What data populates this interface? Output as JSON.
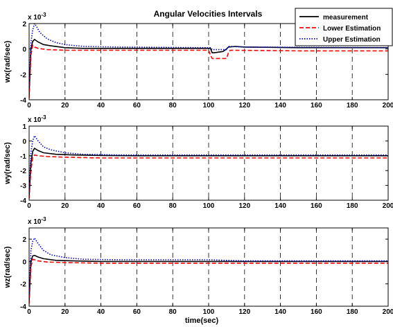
{
  "title": "Angular Velocities Intervals",
  "legend": [
    "measurement",
    "Lower Estimation",
    "Upper Estimation"
  ],
  "chart_data": [
    {
      "type": "line",
      "title": "Angular Velocities Intervals",
      "ylabel": "wx(rad/sec)",
      "xlabel": "",
      "exponent_label": "x 10",
      "exponent_power": "-3",
      "xlim": [
        0,
        200
      ],
      "ylim": [
        -4,
        2
      ],
      "xticks": [
        "0",
        "20",
        "40",
        "60",
        "80",
        "100",
        "120",
        "140",
        "160",
        "180",
        "200"
      ],
      "yticks": [
        "-4",
        "-2",
        "0",
        "2"
      ],
      "grid": "vertical dashed",
      "legend_position": "top-right",
      "series": [
        {
          "name": "measurement",
          "color": "#000000",
          "style": "solid",
          "x": [
            0,
            1,
            2,
            3,
            5,
            8,
            12,
            20,
            30,
            50,
            80,
            101,
            102,
            103,
            108,
            110,
            111,
            115,
            120,
            150,
            200
          ],
          "y": [
            -3.6,
            0.0,
            0.6,
            0.75,
            0.55,
            0.35,
            0.25,
            0.1,
            0.05,
            0.05,
            0.05,
            0.05,
            -0.3,
            -0.3,
            -0.2,
            0.0,
            0.15,
            0.2,
            0.15,
            0.1,
            0.1
          ]
        },
        {
          "name": "Lower Estimation",
          "color": "#ff0000",
          "style": "dashed",
          "x": [
            0,
            1,
            2,
            3,
            5,
            10,
            20,
            50,
            100,
            101,
            102,
            110,
            111,
            112,
            150,
            200
          ],
          "y": [
            -3.9,
            -0.5,
            0.3,
            0.15,
            0.05,
            -0.05,
            -0.1,
            -0.1,
            -0.1,
            -0.5,
            -0.75,
            -0.75,
            -0.3,
            -0.1,
            -0.15,
            -0.15
          ]
        },
        {
          "name": "Upper Estimation",
          "color": "#0000cc",
          "style": "dotted",
          "x": [
            0,
            1,
            2,
            3,
            4,
            6,
            10,
            15,
            20,
            30,
            50,
            101,
            102,
            110,
            111,
            120,
            200
          ],
          "y": [
            -3.0,
            0.5,
            1.5,
            2.0,
            1.8,
            1.3,
            0.8,
            0.5,
            0.35,
            0.2,
            0.15,
            0.1,
            -0.05,
            -0.05,
            0.2,
            0.15,
            0.1
          ]
        }
      ]
    },
    {
      "type": "line",
      "ylabel": "wy(rad/sec)",
      "xlabel": "",
      "exponent_label": "x 10",
      "exponent_power": "-3",
      "xlim": [
        0,
        200
      ],
      "ylim": [
        -4,
        1
      ],
      "xticks": [
        "0",
        "20",
        "40",
        "60",
        "80",
        "100",
        "120",
        "140",
        "160",
        "180",
        "200"
      ],
      "yticks": [
        "-4",
        "-3",
        "-2",
        "-1",
        "0",
        "1"
      ],
      "grid": "vertical dashed",
      "series": [
        {
          "name": "measurement",
          "color": "#000000",
          "style": "solid",
          "x": [
            0,
            1,
            2,
            3,
            5,
            8,
            15,
            25,
            40,
            60,
            200
          ],
          "y": [
            -3.8,
            -1.5,
            -0.7,
            -0.5,
            -0.65,
            -0.8,
            -0.9,
            -0.95,
            -0.98,
            -1.0,
            -1.0
          ]
        },
        {
          "name": "Lower Estimation",
          "color": "#ff0000",
          "style": "dashed",
          "x": [
            0,
            1,
            2,
            3,
            5,
            10,
            20,
            40,
            60,
            100,
            200
          ],
          "y": [
            -3.9,
            -2.0,
            -1.1,
            -0.95,
            -1.0,
            -1.05,
            -1.1,
            -1.15,
            -1.15,
            -1.15,
            -1.15
          ]
        },
        {
          "name": "Upper Estimation",
          "color": "#0000cc",
          "style": "dotted",
          "x": [
            0,
            1,
            2,
            3,
            5,
            8,
            12,
            20,
            30,
            50,
            100,
            200
          ],
          "y": [
            -3.5,
            -0.8,
            0.0,
            0.35,
            0.0,
            -0.4,
            -0.6,
            -0.8,
            -0.9,
            -0.95,
            -0.95,
            -0.95
          ]
        }
      ]
    },
    {
      "type": "line",
      "ylabel": "wz(rad/sec)",
      "xlabel": "time(sec)",
      "exponent_label": "x 10",
      "exponent_power": "-3",
      "xlim": [
        0,
        200
      ],
      "ylim": [
        -4,
        3
      ],
      "xticks": [
        "0",
        "20",
        "40",
        "60",
        "80",
        "100",
        "120",
        "140",
        "160",
        "180",
        "200"
      ],
      "yticks": [
        "-4",
        "-2",
        "0",
        "2"
      ],
      "grid": "vertical dashed",
      "series": [
        {
          "name": "measurement",
          "color": "#000000",
          "style": "solid",
          "x": [
            0,
            1,
            2,
            3,
            5,
            8,
            15,
            25,
            40,
            60,
            200
          ],
          "y": [
            -3.5,
            0.0,
            0.5,
            0.55,
            0.4,
            0.25,
            0.1,
            0.05,
            0.0,
            0.0,
            0.0
          ]
        },
        {
          "name": "Lower Estimation",
          "color": "#ff0000",
          "style": "dashed",
          "x": [
            0,
            1,
            2,
            3,
            5,
            10,
            20,
            40,
            60,
            100,
            200
          ],
          "y": [
            -3.8,
            -0.5,
            0.2,
            0.15,
            0.05,
            -0.05,
            -0.1,
            -0.15,
            -0.15,
            -0.15,
            -0.15
          ]
        },
        {
          "name": "Upper Estimation",
          "color": "#0000cc",
          "style": "dotted",
          "x": [
            0,
            1,
            2,
            3,
            5,
            8,
            12,
            20,
            30,
            50,
            100,
            120,
            200
          ],
          "y": [
            -3.0,
            1.0,
            1.8,
            2.1,
            1.6,
            1.0,
            0.6,
            0.35,
            0.2,
            0.15,
            0.15,
            0.05,
            0.05
          ]
        }
      ]
    }
  ]
}
